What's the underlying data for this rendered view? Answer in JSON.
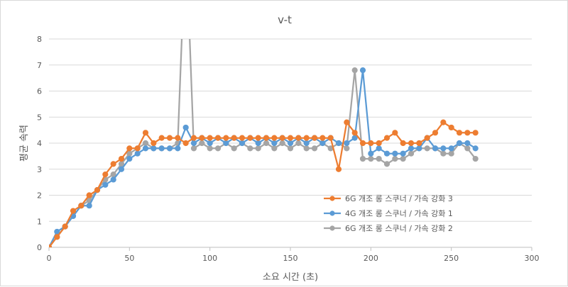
{
  "chart_data": {
    "type": "line",
    "title": "v-t",
    "xlabel": "소요 시간 (초)",
    "ylabel": "평균 속력",
    "xlim": [
      0,
      300
    ],
    "ylim": [
      0,
      8
    ],
    "xticks": [
      0,
      50,
      100,
      150,
      200,
      250,
      300
    ],
    "yticks": [
      0,
      1,
      2,
      3,
      4,
      5,
      6,
      7,
      8
    ],
    "grid": "horizontal",
    "legend_position": "bottom-right",
    "x": [
      0,
      5,
      10,
      15,
      20,
      25,
      30,
      35,
      40,
      45,
      50,
      55,
      60,
      65,
      70,
      75,
      80,
      85,
      90,
      95,
      100,
      105,
      110,
      115,
      120,
      125,
      130,
      135,
      140,
      145,
      150,
      155,
      160,
      165,
      170,
      175,
      180,
      185,
      190,
      195,
      200,
      205,
      210,
      215,
      220,
      225,
      230,
      235,
      240,
      245,
      250,
      255,
      260,
      265
    ],
    "series": [
      {
        "name": "6G 개조 롱 스쿠너 / 가속 강화 3",
        "color": "#ed7d31",
        "values": [
          0,
          0.4,
          0.8,
          1.4,
          1.6,
          2.0,
          2.2,
          2.8,
          3.2,
          3.4,
          3.8,
          3.8,
          4.4,
          4.0,
          4.2,
          4.2,
          4.2,
          4.0,
          4.2,
          4.2,
          4.2,
          4.2,
          4.2,
          4.2,
          4.2,
          4.2,
          4.2,
          4.2,
          4.2,
          4.2,
          4.2,
          4.2,
          4.2,
          4.2,
          4.2,
          4.2,
          3.0,
          4.8,
          4.4,
          4.0,
          4.0,
          4.0,
          4.2,
          4.4,
          4.0,
          4.0,
          4.0,
          4.2,
          4.4,
          4.8,
          4.6,
          4.4,
          4.4,
          4.4
        ]
      },
      {
        "name": "4G 개조 롱 스쿠너 / 가속 강화 1",
        "color": "#5b9bd5",
        "values": [
          0,
          0.6,
          0.8,
          1.2,
          1.6,
          1.6,
          2.2,
          2.4,
          2.6,
          3.0,
          3.4,
          3.6,
          3.8,
          3.8,
          3.8,
          3.8,
          3.8,
          4.6,
          4.0,
          4.2,
          4.0,
          4.2,
          4.0,
          4.2,
          4.0,
          4.2,
          4.0,
          4.2,
          4.0,
          4.2,
          4.0,
          4.2,
          4.0,
          4.2,
          4.0,
          4.2,
          4.0,
          4.0,
          4.2,
          6.8,
          3.6,
          3.8,
          3.6,
          3.6,
          3.6,
          3.8,
          3.8,
          4.2,
          3.8,
          3.8,
          3.8,
          4.0,
          4.0,
          3.8
        ]
      },
      {
        "name": "6G 개조 롱 스쿠너 / 가속 강화 2",
        "color": "#a5a5a5",
        "values": [
          0,
          0.4,
          0.8,
          1.2,
          1.6,
          1.8,
          2.2,
          2.6,
          2.8,
          3.2,
          3.6,
          3.8,
          4.0,
          3.8,
          3.8,
          3.8,
          4.0,
          12.0,
          3.8,
          4.0,
          3.8,
          3.8,
          4.0,
          3.8,
          4.0,
          3.8,
          3.8,
          4.0,
          3.8,
          4.0,
          3.8,
          4.0,
          3.8,
          3.8,
          4.0,
          3.8,
          4.0,
          3.8,
          6.8,
          3.4,
          3.4,
          3.4,
          3.2,
          3.4,
          3.4,
          3.6,
          3.8,
          3.8,
          3.8,
          3.6,
          3.6,
          4.0,
          3.8,
          3.4
        ]
      }
    ]
  }
}
